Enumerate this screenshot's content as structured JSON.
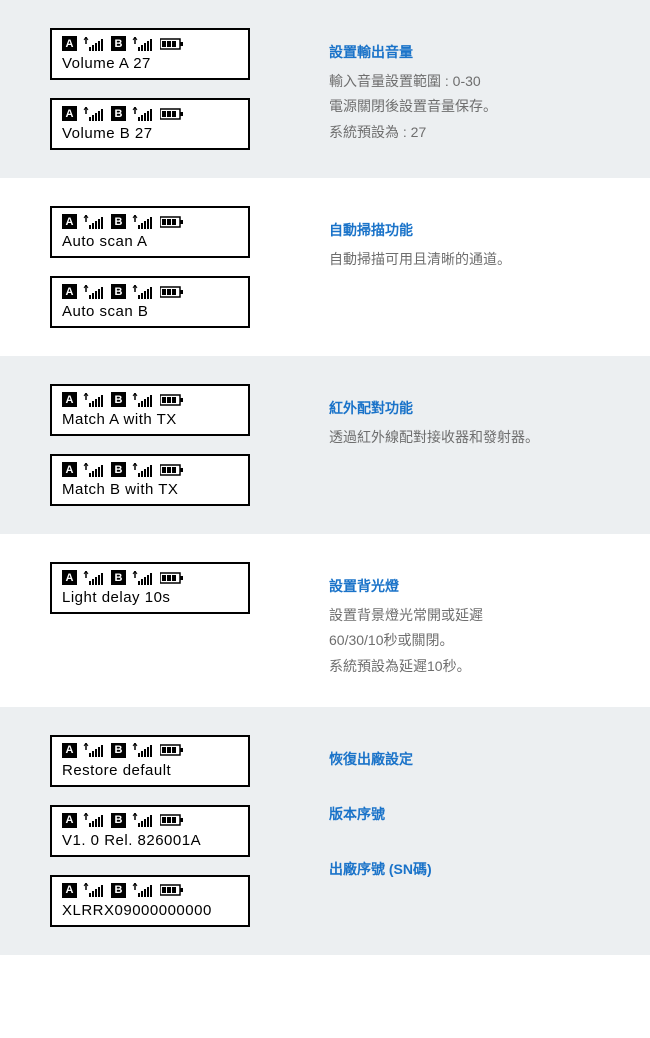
{
  "colors": {
    "shaded_bg": "#eceff1",
    "plain_bg": "#ffffff",
    "title_blue": "#1a73c9",
    "body_gray": "#6e6e6e",
    "lcd_border": "#000000"
  },
  "icons": {
    "channel_a": "A",
    "channel_b": "B"
  },
  "sections": [
    {
      "id": "volume",
      "shaded": true,
      "lcds": [
        {
          "text": "Volume  A  27"
        },
        {
          "text": "Volume  B  27"
        }
      ],
      "desc": [
        {
          "title": "設置輸出音量",
          "lines": [
            "輸入音量設置範圍 : 0-30",
            "電源關閉後設置音量保存。",
            "系統預設為 : 27"
          ]
        }
      ]
    },
    {
      "id": "autoscan",
      "shaded": false,
      "lcds": [
        {
          "text": "Auto  scan  A"
        },
        {
          "text": "Auto  scan  B"
        }
      ],
      "desc": [
        {
          "title": "自動掃描功能",
          "lines": [
            "自動掃描可用且清晰的通道。"
          ]
        }
      ]
    },
    {
      "id": "match",
      "shaded": true,
      "lcds": [
        {
          "text": "Match  A  with TX"
        },
        {
          "text": "Match  B  with TX"
        }
      ],
      "desc": [
        {
          "title": "紅外配對功能",
          "lines": [
            "透過紅外線配對接收器和發射器。"
          ]
        }
      ]
    },
    {
      "id": "light",
      "shaded": false,
      "lcds": [
        {
          "text": "Light  delay  10s"
        }
      ],
      "desc": [
        {
          "title": "設置背光燈",
          "lines": [
            "設置背景燈光常開或延遲",
            "60/30/10秒或關閉。",
            "系統預設為延遲10秒。"
          ]
        }
      ]
    },
    {
      "id": "restore",
      "shaded": true,
      "lcds": [
        {
          "text": "Restore  default"
        },
        {
          "text": "V1. 0  Rel. 826001A"
        },
        {
          "text": "XLRRX09000000000"
        }
      ],
      "desc": [
        {
          "title": "恢復出廠設定",
          "lines": []
        },
        {
          "title": "版本序號",
          "lines": []
        },
        {
          "title": "出廠序號 (SN碼)",
          "lines": []
        }
      ]
    }
  ]
}
